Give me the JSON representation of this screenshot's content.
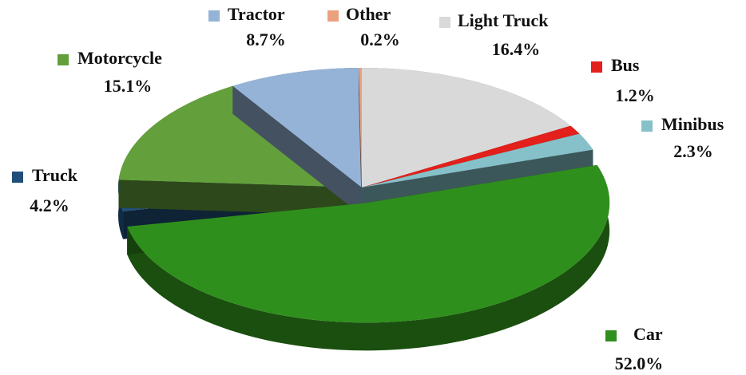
{
  "chart_data": {
    "type": "pie",
    "categories": [
      "Light Truck",
      "Bus",
      "Minibus",
      "Car",
      "Truck",
      "Motorcycle",
      "Tractor",
      "Other"
    ],
    "values": [
      16.4,
      1.2,
      2.3,
      52.0,
      4.2,
      15.1,
      8.7,
      0.2
    ],
    "value_labels": [
      "16.4%",
      "1.2%",
      "2.3%",
      "52.0%",
      "4.2%",
      "15.1%",
      "8.7%",
      "0.2%"
    ],
    "colors": [
      "#d9d9d9",
      "#e3201b",
      "#86c1c9",
      "#2f8f1c",
      "#1f4e79",
      "#63a03c",
      "#95b3d7",
      "#eba07e"
    ]
  }
}
